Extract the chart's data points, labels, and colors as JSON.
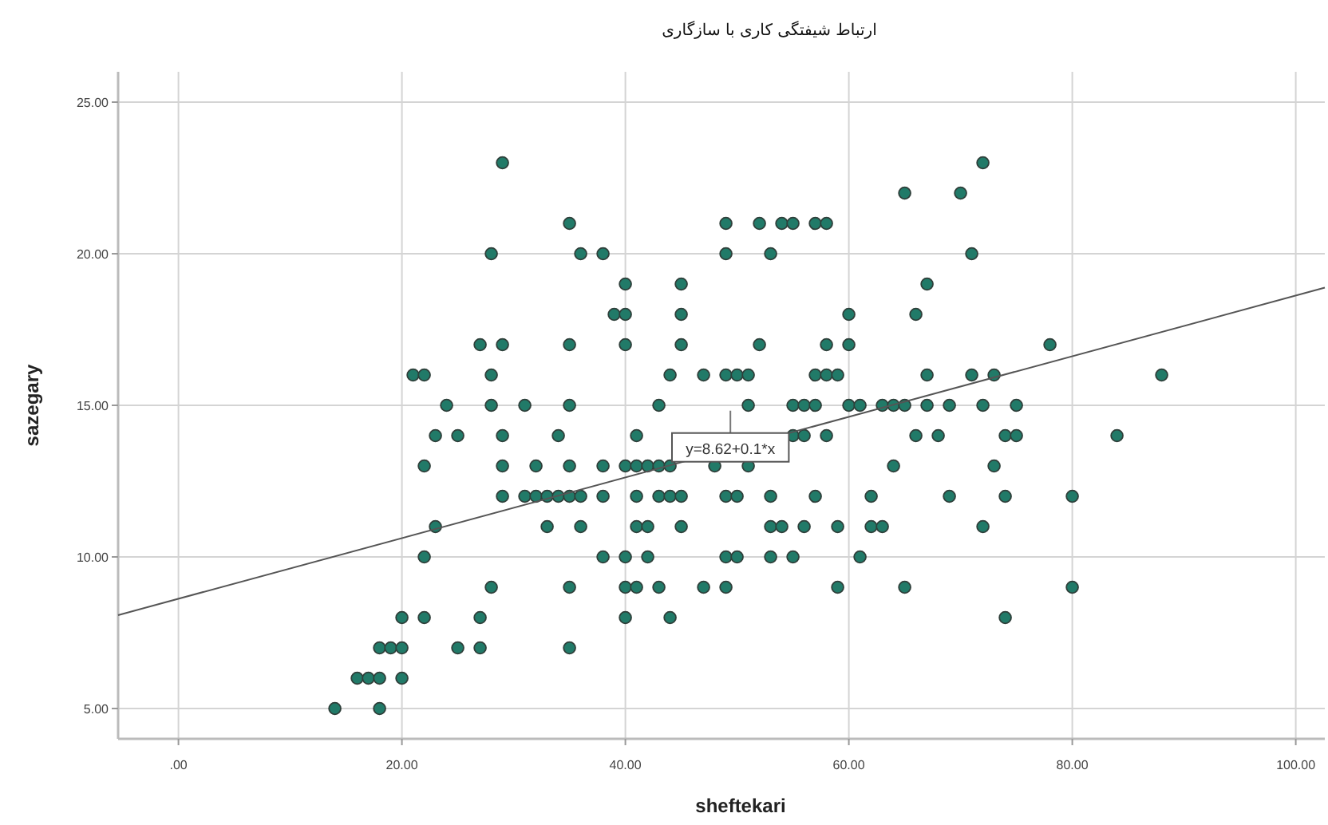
{
  "chart_data": {
    "type": "scatter",
    "title": "ارتباط شیفتگی کاری با سازگاری",
    "xlabel": "sheftekari",
    "ylabel": "sazegary",
    "xlim": [
      -5.4,
      102.6
    ],
    "ylim": [
      4,
      26
    ],
    "xticks": [
      {
        "value": 0,
        "label": ".00"
      },
      {
        "value": 20,
        "label": "20.00"
      },
      {
        "value": 40,
        "label": "40.00"
      },
      {
        "value": 60,
        "label": "60.00"
      },
      {
        "value": 80,
        "label": "80.00"
      },
      {
        "value": 100,
        "label": "100.00"
      }
    ],
    "yticks": [
      {
        "value": 5,
        "label": "5.00"
      },
      {
        "value": 10,
        "label": "10.00"
      },
      {
        "value": 15,
        "label": "15.00"
      },
      {
        "value": 20,
        "label": "20.00"
      },
      {
        "value": 25,
        "label": "25.00"
      }
    ],
    "grid": true,
    "series": [
      {
        "color": "#217a68",
        "marker": "circle",
        "x": [
          29,
          72,
          65,
          70,
          35,
          49,
          52,
          54,
          55,
          57,
          58,
          28,
          36,
          38,
          49,
          53,
          71,
          40,
          45,
          67,
          39,
          40,
          45,
          60,
          66,
          27,
          29,
          35,
          40,
          45,
          52,
          58,
          60,
          78,
          21,
          22,
          28,
          44,
          47,
          49,
          50,
          51,
          57,
          58,
          59,
          67,
          71,
          73,
          88,
          24,
          28,
          31,
          35,
          43,
          51,
          55,
          56,
          57,
          60,
          61,
          63,
          64,
          65,
          67,
          69,
          72,
          75,
          23,
          25,
          29,
          34,
          41,
          55,
          56,
          58,
          66,
          68,
          74,
          75,
          84,
          22,
          29,
          32,
          35,
          38,
          40,
          41,
          42,
          43,
          44,
          48,
          51,
          64,
          73,
          29,
          31,
          32,
          33,
          34,
          35,
          36,
          38,
          41,
          43,
          44,
          45,
          49,
          50,
          53,
          57,
          62,
          69,
          74,
          80,
          23,
          33,
          36,
          41,
          42,
          45,
          53,
          54,
          56,
          59,
          62,
          63,
          72,
          22,
          38,
          40,
          42,
          49,
          50,
          53,
          55,
          61,
          28,
          35,
          40,
          41,
          43,
          47,
          49,
          59,
          65,
          80,
          20,
          22,
          27,
          40,
          44,
          74,
          18,
          19,
          20,
          25,
          27,
          35,
          16,
          17,
          18,
          20,
          14,
          18
        ],
        "values": [
          23,
          23,
          22,
          22,
          21,
          21,
          21,
          21,
          21,
          21,
          21,
          20,
          20,
          20,
          20,
          20,
          20,
          19,
          19,
          19,
          18,
          18,
          18,
          18,
          18,
          17,
          17,
          17,
          17,
          17,
          17,
          17,
          17,
          17,
          16,
          16,
          16,
          16,
          16,
          16,
          16,
          16,
          16,
          16,
          16,
          16,
          16,
          16,
          16,
          15,
          15,
          15,
          15,
          15,
          15,
          15,
          15,
          15,
          15,
          15,
          15,
          15,
          15,
          15,
          15,
          15,
          15,
          14,
          14,
          14,
          14,
          14,
          14,
          14,
          14,
          14,
          14,
          14,
          14,
          14,
          13,
          13,
          13,
          13,
          13,
          13,
          13,
          13,
          13,
          13,
          13,
          13,
          13,
          13,
          12,
          12,
          12,
          12,
          12,
          12,
          12,
          12,
          12,
          12,
          12,
          12,
          12,
          12,
          12,
          12,
          12,
          12,
          12,
          12,
          11,
          11,
          11,
          11,
          11,
          11,
          11,
          11,
          11,
          11,
          11,
          11,
          11,
          10,
          10,
          10,
          10,
          10,
          10,
          10,
          10,
          10,
          9,
          9,
          9,
          9,
          9,
          9,
          9,
          9,
          9,
          9,
          8,
          8,
          8,
          8,
          8,
          8,
          7,
          7,
          7,
          7,
          7,
          7,
          6,
          6,
          6,
          6,
          5,
          5
        ]
      },
      {
        "type": "line",
        "color": "#555555",
        "marker": "none",
        "x": [
          -5.4,
          102.6
        ],
        "values": [
          8.08,
          18.88
        ]
      }
    ],
    "annotations": [
      {
        "text": "y=8.62+0.1*x",
        "x": 49.4,
        "y": 13.56
      }
    ]
  }
}
